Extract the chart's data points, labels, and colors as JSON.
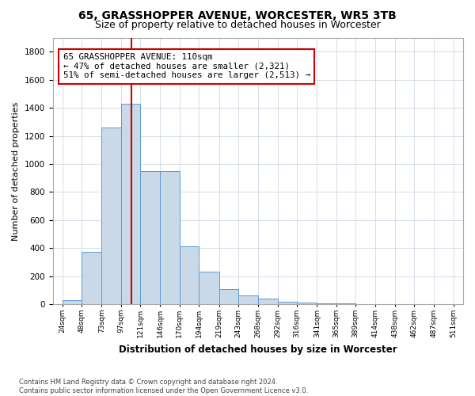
{
  "title1": "65, GRASSHOPPER AVENUE, WORCESTER, WR5 3TB",
  "title2": "Size of property relative to detached houses in Worcester",
  "xlabel": "Distribution of detached houses by size in Worcester",
  "ylabel": "Number of detached properties",
  "footnote": "Contains HM Land Registry data © Crown copyright and database right 2024.\nContains public sector information licensed under the Open Government Licence v3.0.",
  "bins": [
    24,
    48,
    73,
    97,
    121,
    146,
    170,
    194,
    219,
    243,
    268,
    292,
    316,
    341,
    365,
    389,
    414,
    438,
    462,
    487,
    511
  ],
  "counts": [
    30,
    375,
    1260,
    1430,
    950,
    950,
    415,
    230,
    110,
    65,
    40,
    18,
    12,
    8,
    5,
    4,
    3,
    2,
    2,
    1
  ],
  "bar_color": "#c9d9e8",
  "bar_edge_color": "#5b9bd5",
  "vline_x": 110,
  "vline_color": "#cc0000",
  "annotation_text": "65 GRASSHOPPER AVENUE: 110sqm\n← 47% of detached houses are smaller (2,321)\n51% of semi-detached houses are larger (2,513) →",
  "annotation_box_color": "#ffffff",
  "annotation_box_edge": "#cc0000",
  "ylim": [
    0,
    1900
  ],
  "yticks": [
    0,
    200,
    400,
    600,
    800,
    1000,
    1200,
    1400,
    1600,
    1800
  ],
  "bg_color": "#ffffff",
  "grid_color": "#d0d8e4",
  "title1_fontsize": 10,
  "title2_fontsize": 9,
  "xlabel_fontsize": 8.5,
  "ylabel_fontsize": 8
}
